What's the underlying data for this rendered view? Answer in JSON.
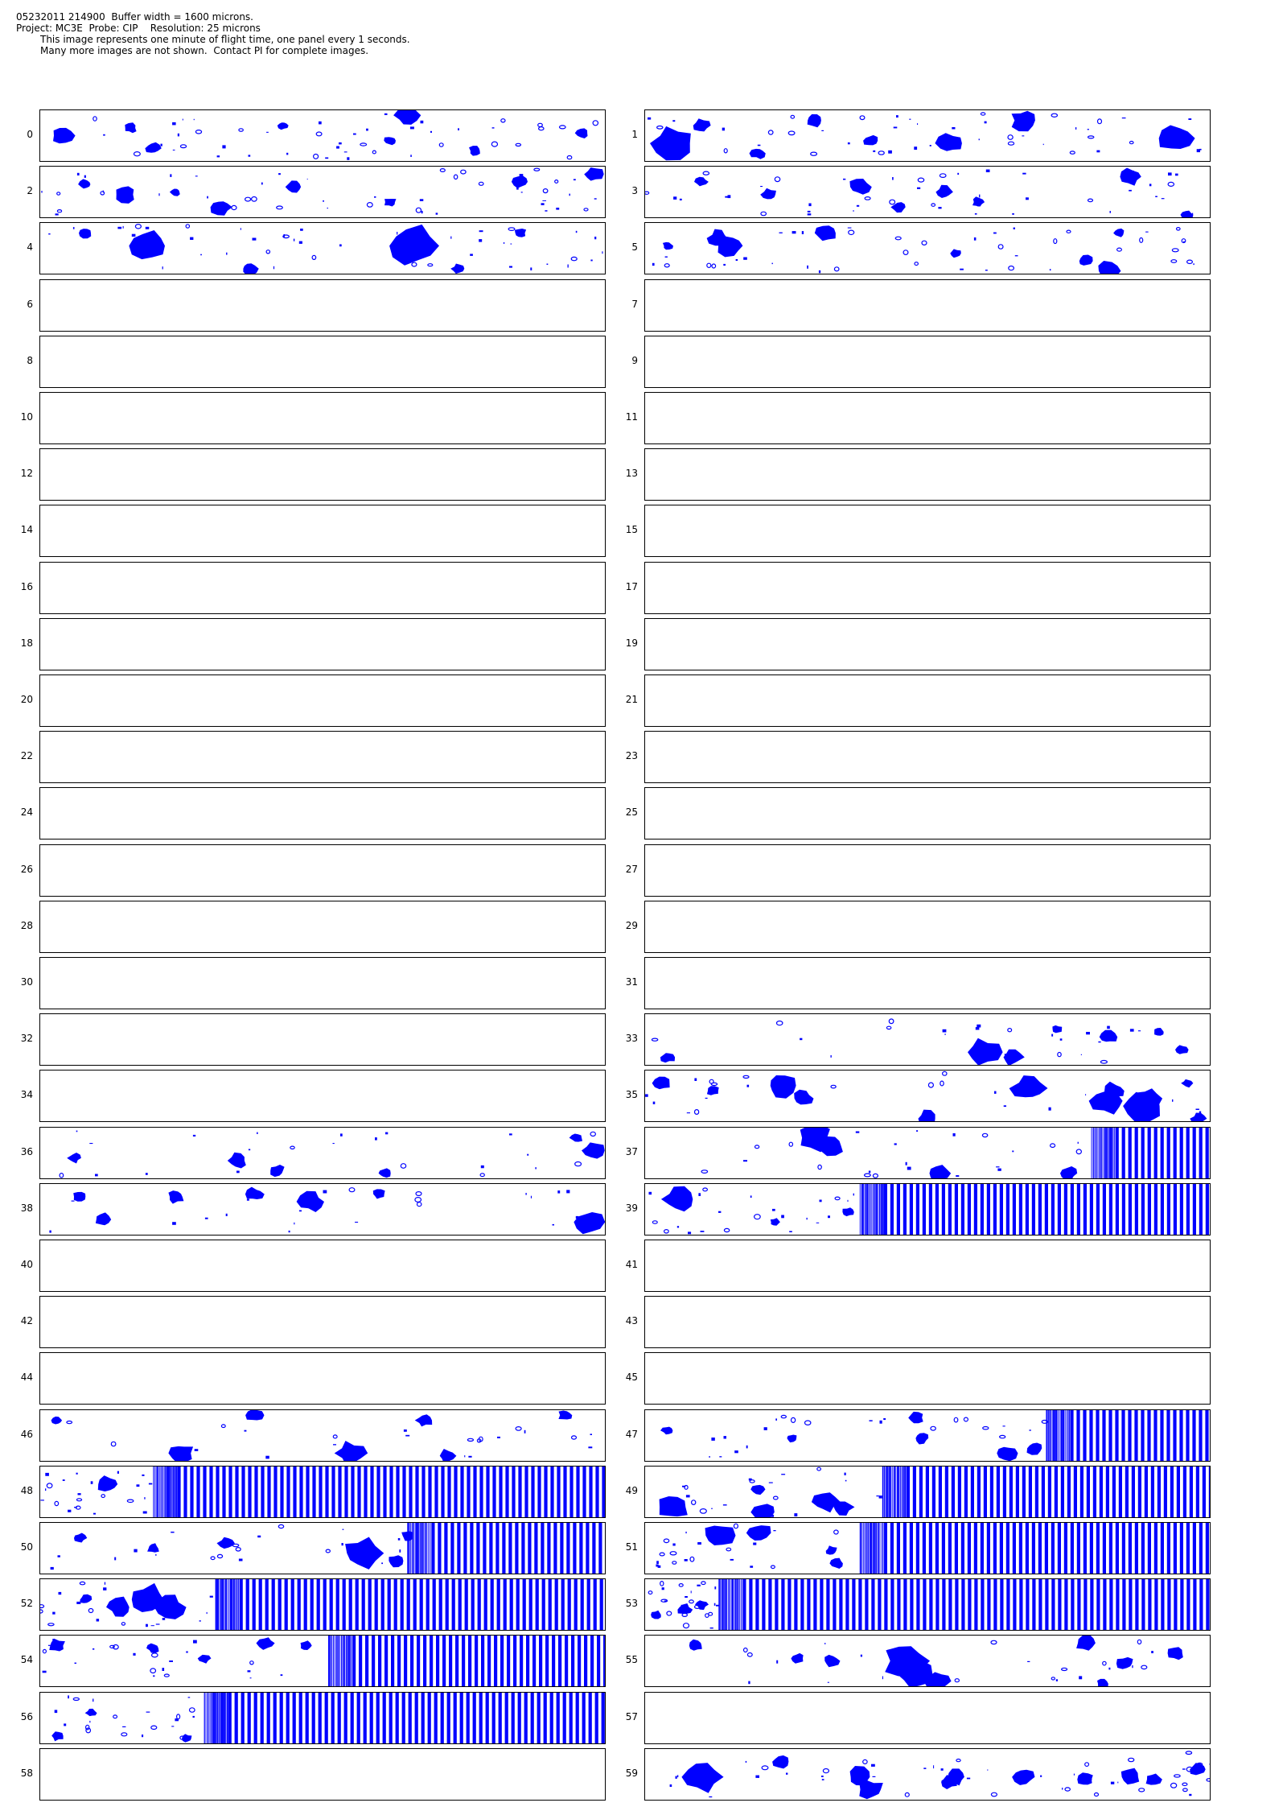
{
  "header": {
    "line1": "05232011 214900  Buffer width = 1600 microns.",
    "line2": "Project: MC3E  Probe: CIP    Resolution: 25 microns",
    "line3": "This image represents one minute of flight time, one panel every 1 seconds.",
    "line4": "Many more images are not shown.  Contact PI for complete images."
  },
  "colors": {
    "particle": "#0000ff",
    "border": "#000000",
    "background": "#ffffff"
  },
  "panels": [
    {
      "label": "0",
      "particles": "dense",
      "blobs": [
        [
          0.04,
          0.5,
          10
        ],
        [
          0.16,
          0.35,
          6
        ],
        [
          0.2,
          0.75,
          7
        ],
        [
          0.43,
          0.3,
          5
        ],
        [
          0.62,
          0.6,
          6
        ],
        [
          0.65,
          0.1,
          12
        ],
        [
          0.77,
          0.8,
          6
        ],
        [
          0.96,
          0.45,
          6
        ]
      ],
      "stripes": null
    },
    {
      "label": "1",
      "particles": "dense",
      "blobs": [
        [
          0.05,
          0.65,
          20
        ],
        [
          0.1,
          0.3,
          8
        ],
        [
          0.2,
          0.85,
          7
        ],
        [
          0.3,
          0.2,
          8
        ],
        [
          0.4,
          0.6,
          7
        ],
        [
          0.54,
          0.65,
          12
        ],
        [
          0.67,
          0.2,
          12
        ],
        [
          0.94,
          0.55,
          16
        ]
      ],
      "stripes": null
    },
    {
      "label": "2",
      "particles": "dense",
      "blobs": [
        [
          0.08,
          0.35,
          6
        ],
        [
          0.15,
          0.55,
          10
        ],
        [
          0.24,
          0.5,
          5
        ],
        [
          0.32,
          0.8,
          10
        ],
        [
          0.45,
          0.4,
          8
        ],
        [
          0.62,
          0.7,
          6
        ],
        [
          0.85,
          0.3,
          7
        ],
        [
          0.98,
          0.15,
          9
        ]
      ],
      "stripes": null
    },
    {
      "label": "3",
      "particles": "dense",
      "blobs": [
        [
          0.1,
          0.3,
          6
        ],
        [
          0.22,
          0.55,
          8
        ],
        [
          0.38,
          0.4,
          10
        ],
        [
          0.45,
          0.8,
          7
        ],
        [
          0.53,
          0.5,
          8
        ],
        [
          0.59,
          0.7,
          6
        ],
        [
          0.86,
          0.2,
          10
        ],
        [
          0.96,
          0.95,
          6
        ]
      ],
      "stripes": null
    },
    {
      "label": "4",
      "particles": "dense",
      "blobs": [
        [
          0.08,
          0.2,
          6
        ],
        [
          0.19,
          0.45,
          18
        ],
        [
          0.37,
          0.9,
          8
        ],
        [
          0.66,
          0.45,
          24
        ],
        [
          0.74,
          0.9,
          6
        ],
        [
          0.85,
          0.2,
          6
        ]
      ],
      "stripes": null
    },
    {
      "label": "5",
      "particles": "dense",
      "blobs": [
        [
          0.04,
          0.45,
          5
        ],
        [
          0.13,
          0.3,
          10
        ],
        [
          0.15,
          0.45,
          14
        ],
        [
          0.32,
          0.2,
          10
        ],
        [
          0.55,
          0.6,
          6
        ],
        [
          0.78,
          0.75,
          7
        ],
        [
          0.84,
          0.2,
          5
        ],
        [
          0.82,
          0.95,
          12
        ]
      ],
      "stripes": null
    },
    {
      "label": "6",
      "particles": "none",
      "blobs": [],
      "stripes": null
    },
    {
      "label": "7",
      "particles": "none",
      "blobs": [],
      "stripes": null
    },
    {
      "label": "8",
      "particles": "none",
      "blobs": [],
      "stripes": null
    },
    {
      "label": "9",
      "particles": "none",
      "blobs": [],
      "stripes": null
    },
    {
      "label": "10",
      "particles": "none",
      "blobs": [],
      "stripes": null
    },
    {
      "label": "11",
      "particles": "none",
      "blobs": [],
      "stripes": null
    },
    {
      "label": "12",
      "particles": "none",
      "blobs": [],
      "stripes": null
    },
    {
      "label": "13",
      "particles": "none",
      "blobs": [],
      "stripes": null
    },
    {
      "label": "14",
      "particles": "none",
      "blobs": [],
      "stripes": null
    },
    {
      "label": "15",
      "particles": "none",
      "blobs": [],
      "stripes": null
    },
    {
      "label": "16",
      "particles": "none",
      "blobs": [],
      "stripes": null
    },
    {
      "label": "17",
      "particles": "none",
      "blobs": [],
      "stripes": null
    },
    {
      "label": "18",
      "particles": "none",
      "blobs": [],
      "stripes": null
    },
    {
      "label": "19",
      "particles": "none",
      "blobs": [],
      "stripes": null
    },
    {
      "label": "20",
      "particles": "none",
      "blobs": [],
      "stripes": null
    },
    {
      "label": "21",
      "particles": "none",
      "blobs": [],
      "stripes": null
    },
    {
      "label": "22",
      "particles": "none",
      "blobs": [],
      "stripes": null
    },
    {
      "label": "23",
      "particles": "none",
      "blobs": [],
      "stripes": null
    },
    {
      "label": "24",
      "particles": "none",
      "blobs": [],
      "stripes": null
    },
    {
      "label": "25",
      "particles": "none",
      "blobs": [],
      "stripes": null
    },
    {
      "label": "26",
      "particles": "none",
      "blobs": [],
      "stripes": null
    },
    {
      "label": "27",
      "particles": "none",
      "blobs": [],
      "stripes": null
    },
    {
      "label": "28",
      "particles": "none",
      "blobs": [],
      "stripes": null
    },
    {
      "label": "29",
      "particles": "none",
      "blobs": [],
      "stripes": null
    },
    {
      "label": "30",
      "particles": "none",
      "blobs": [],
      "stripes": null
    },
    {
      "label": "31",
      "particles": "none",
      "blobs": [],
      "stripes": null
    },
    {
      "label": "32",
      "particles": "none",
      "blobs": [],
      "stripes": null
    },
    {
      "label": "33",
      "particles": "sparse",
      "blobs": [
        [
          0.04,
          0.85,
          7
        ],
        [
          0.6,
          0.75,
          16
        ],
        [
          0.65,
          0.85,
          10
        ],
        [
          0.73,
          0.3,
          5
        ],
        [
          0.82,
          0.45,
          8
        ],
        [
          0.91,
          0.35,
          5
        ],
        [
          0.95,
          0.7,
          6
        ]
      ],
      "stripes": null
    },
    {
      "label": "34",
      "particles": "none",
      "blobs": [],
      "stripes": null
    },
    {
      "label": "35",
      "particles": "sparse",
      "blobs": [
        [
          0.03,
          0.25,
          8
        ],
        [
          0.12,
          0.4,
          6
        ],
        [
          0.24,
          0.3,
          14
        ],
        [
          0.28,
          0.55,
          10
        ],
        [
          0.5,
          0.95,
          10
        ],
        [
          0.68,
          0.35,
          16
        ],
        [
          0.82,
          0.6,
          16
        ],
        [
          0.83,
          0.4,
          10
        ],
        [
          0.88,
          0.7,
          18
        ],
        [
          0.89,
          0.55,
          12
        ],
        [
          0.98,
          0.95,
          7
        ],
        [
          0.96,
          0.25,
          5
        ]
      ],
      "stripes": null
    },
    {
      "label": "36",
      "particles": "sparse",
      "blobs": [
        [
          0.06,
          0.6,
          6
        ],
        [
          0.35,
          0.65,
          9
        ],
        [
          0.42,
          0.85,
          7
        ],
        [
          0.61,
          0.9,
          6
        ],
        [
          0.98,
          0.45,
          10
        ],
        [
          0.95,
          0.2,
          6
        ]
      ],
      "stripes": null
    },
    {
      "label": "37",
      "particles": "sparse",
      "blobs": [
        [
          0.3,
          0.2,
          16
        ],
        [
          0.33,
          0.35,
          12
        ],
        [
          0.52,
          0.9,
          10
        ],
        [
          0.75,
          0.9,
          8
        ]
      ],
      "stripes": [
        0.79,
        1.0
      ]
    },
    {
      "label": "38",
      "particles": "sparse",
      "blobs": [
        [
          0.07,
          0.25,
          7
        ],
        [
          0.11,
          0.7,
          8
        ],
        [
          0.24,
          0.25,
          8
        ],
        [
          0.38,
          0.2,
          8
        ],
        [
          0.48,
          0.35,
          12
        ],
        [
          0.6,
          0.2,
          6
        ],
        [
          0.97,
          0.75,
          14
        ]
      ],
      "stripes": null
    },
    {
      "label": "39",
      "particles": "sparse",
      "blobs": [
        [
          0.06,
          0.3,
          16
        ],
        [
          0.23,
          0.75,
          5
        ],
        [
          0.36,
          0.55,
          6
        ]
      ],
      "stripes": [
        0.38,
        1.0
      ]
    },
    {
      "label": "40",
      "particles": "none",
      "blobs": [],
      "stripes": null
    },
    {
      "label": "41",
      "particles": "none",
      "blobs": [],
      "stripes": null
    },
    {
      "label": "42",
      "particles": "none",
      "blobs": [],
      "stripes": null
    },
    {
      "label": "43",
      "particles": "none",
      "blobs": [],
      "stripes": null
    },
    {
      "label": "44",
      "particles": "none",
      "blobs": [],
      "stripes": null
    },
    {
      "label": "45",
      "particles": "none",
      "blobs": [],
      "stripes": null
    },
    {
      "label": "46",
      "particles": "sparse",
      "blobs": [
        [
          0.03,
          0.2,
          5
        ],
        [
          0.25,
          0.85,
          12
        ],
        [
          0.38,
          0.1,
          8
        ],
        [
          0.55,
          0.85,
          14
        ],
        [
          0.68,
          0.2,
          8
        ],
        [
          0.72,
          0.9,
          8
        ],
        [
          0.93,
          0.1,
          7
        ]
      ],
      "stripes": null
    },
    {
      "label": "47",
      "particles": "sparse",
      "blobs": [
        [
          0.04,
          0.4,
          6
        ],
        [
          0.26,
          0.55,
          5
        ],
        [
          0.49,
          0.55,
          7
        ],
        [
          0.48,
          0.15,
          7
        ],
        [
          0.64,
          0.85,
          10
        ],
        [
          0.69,
          0.75,
          8
        ]
      ],
      "stripes": [
        0.71,
        1.0
      ]
    },
    {
      "label": "48",
      "particles": "sparse",
      "blobs": [
        [
          0.12,
          0.35,
          10
        ]
      ],
      "stripes": [
        0.2,
        1.0
      ]
    },
    {
      "label": "49",
      "particles": "sparse",
      "blobs": [
        [
          0.05,
          0.8,
          16
        ],
        [
          0.2,
          0.45,
          6
        ],
        [
          0.21,
          0.9,
          12
        ],
        [
          0.32,
          0.7,
          12
        ],
        [
          0.35,
          0.8,
          10
        ]
      ],
      "stripes": [
        0.42,
        1.0
      ]
    },
    {
      "label": "50",
      "particles": "sparse",
      "blobs": [
        [
          0.07,
          0.3,
          6
        ],
        [
          0.2,
          0.5,
          6
        ],
        [
          0.33,
          0.4,
          8
        ],
        [
          0.57,
          0.6,
          18
        ],
        [
          0.63,
          0.75,
          8
        ],
        [
          0.65,
          0.25,
          6
        ]
      ],
      "stripes": [
        0.65,
        1.0
      ]
    },
    {
      "label": "51",
      "particles": "sparse",
      "blobs": [
        [
          0.13,
          0.25,
          16
        ],
        [
          0.2,
          0.2,
          12
        ],
        [
          0.33,
          0.55,
          6
        ],
        [
          0.34,
          0.8,
          6
        ]
      ],
      "stripes": [
        0.38,
        1.0
      ]
    },
    {
      "label": "52",
      "particles": "sparse",
      "blobs": [
        [
          0.08,
          0.4,
          6
        ],
        [
          0.19,
          0.4,
          18
        ],
        [
          0.23,
          0.55,
          14
        ],
        [
          0.14,
          0.55,
          12
        ]
      ],
      "stripes": [
        0.31,
        1.0
      ]
    },
    {
      "label": "53",
      "particles": "sparse",
      "blobs": [
        [
          0.02,
          0.7,
          5
        ],
        [
          0.07,
          0.6,
          7
        ],
        [
          0.1,
          0.5,
          6
        ]
      ],
      "stripes": [
        0.13,
        1.0
      ]
    },
    {
      "label": "54",
      "particles": "sparse",
      "blobs": [
        [
          0.03,
          0.2,
          8
        ],
        [
          0.2,
          0.25,
          6
        ],
        [
          0.29,
          0.45,
          6
        ],
        [
          0.4,
          0.15,
          8
        ],
        [
          0.47,
          0.2,
          6
        ]
      ],
      "stripes": [
        0.51,
        1.0
      ]
    },
    {
      "label": "55",
      "particles": "sparse",
      "blobs": [
        [
          0.09,
          0.2,
          7
        ],
        [
          0.27,
          0.45,
          6
        ],
        [
          0.33,
          0.5,
          8
        ],
        [
          0.46,
          0.5,
          20
        ],
        [
          0.48,
          0.75,
          16
        ],
        [
          0.52,
          0.9,
          12
        ],
        [
          0.78,
          0.15,
          10
        ],
        [
          0.85,
          0.55,
          8
        ],
        [
          0.94,
          0.35,
          8
        ],
        [
          0.81,
          0.95,
          6
        ]
      ],
      "stripes": null
    },
    {
      "label": "56",
      "particles": "sparse",
      "blobs": [
        [
          0.03,
          0.85,
          6
        ],
        [
          0.09,
          0.4,
          5
        ],
        [
          0.26,
          0.9,
          5
        ]
      ],
      "stripes": [
        0.29,
        1.0
      ]
    },
    {
      "label": "57",
      "particles": "none",
      "blobs": [],
      "stripes": null
    },
    {
      "label": "58",
      "particles": "none",
      "blobs": [],
      "stripes": null
    },
    {
      "label": "59",
      "particles": "dense",
      "blobs": [
        [
          0.1,
          0.55,
          18
        ],
        [
          0.24,
          0.25,
          8
        ],
        [
          0.38,
          0.55,
          12
        ],
        [
          0.4,
          0.8,
          12
        ],
        [
          0.54,
          0.65,
          8
        ],
        [
          0.55,
          0.55,
          10
        ],
        [
          0.67,
          0.55,
          10
        ],
        [
          0.86,
          0.55,
          10
        ],
        [
          0.9,
          0.6,
          8
        ],
        [
          0.98,
          0.4,
          8
        ],
        [
          0.78,
          0.6,
          8
        ]
      ],
      "stripes": null
    }
  ]
}
